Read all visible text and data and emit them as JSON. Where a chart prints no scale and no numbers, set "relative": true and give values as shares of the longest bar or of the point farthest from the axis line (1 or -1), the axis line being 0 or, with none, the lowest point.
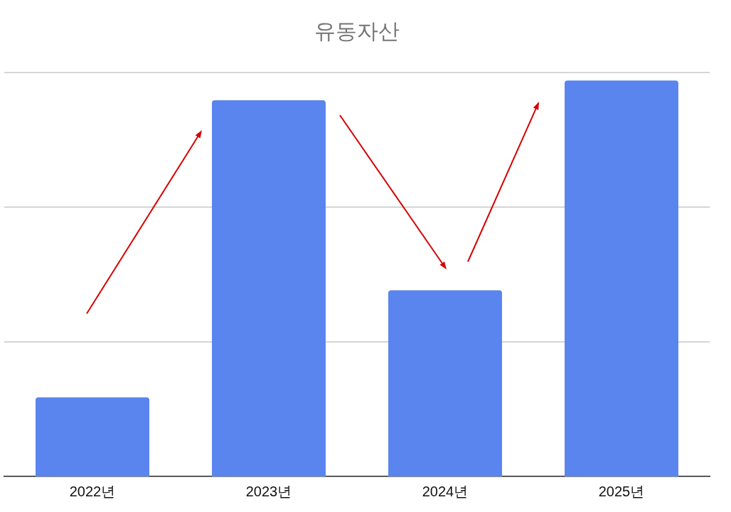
{
  "chart_data": {
    "type": "bar",
    "title": "유동자산",
    "categories": [
      "2022년",
      "2023년",
      "2024년",
      "2025년"
    ],
    "values": [
      0.2,
      0.95,
      0.47,
      1
    ],
    "color": "#5a84ee",
    "relative": true,
    "ref_lines": [
      {
        "axis": "y",
        "value": 0.34,
        "color": "#c8c8c8"
      },
      {
        "axis": "y",
        "value": 0.68,
        "color": "#c8c8c8"
      },
      {
        "axis": "y",
        "value": 1.02,
        "color": "#c8c8c8"
      }
    ],
    "legend": false
  }
}
